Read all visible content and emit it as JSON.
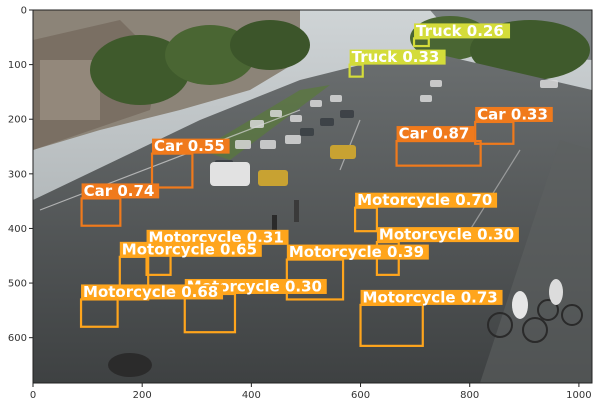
{
  "plot": {
    "x_ticks": [
      "0",
      "200",
      "400",
      "600",
      "800",
      "1000"
    ],
    "y_ticks": [
      "0",
      "100",
      "200",
      "300",
      "400",
      "500",
      "600"
    ],
    "xlim": [
      0,
      1024
    ],
    "ylim": [
      683,
      0
    ]
  },
  "colors": {
    "car": "#f07a1c",
    "truck": "#d4dc3a",
    "motorcycle": "#ffa51c"
  },
  "detections": [
    {
      "label": "Truck 0.26",
      "cls": "truck",
      "x1": 698,
      "y1": 52,
      "x2": 725,
      "y2": 66
    },
    {
      "label": "Truck 0.33",
      "cls": "truck",
      "x1": 580,
      "y1": 100,
      "x2": 604,
      "y2": 122
    },
    {
      "label": "Car 0.33",
      "cls": "car",
      "x1": 810,
      "y1": 205,
      "x2": 880,
      "y2": 245
    },
    {
      "label": "Car 0.87",
      "cls": "car",
      "x1": 666,
      "y1": 240,
      "x2": 820,
      "y2": 285
    },
    {
      "label": "Car 0.55",
      "cls": "car",
      "x1": 218,
      "y1": 263,
      "x2": 292,
      "y2": 325
    },
    {
      "label": "Car 0.74",
      "cls": "car",
      "x1": 89,
      "y1": 345,
      "x2": 160,
      "y2": 395
    },
    {
      "label": "Motorcycle 0.70",
      "cls": "motorcycle",
      "x1": 590,
      "y1": 362,
      "x2": 630,
      "y2": 405
    },
    {
      "label": "Motorcycle 0.31",
      "cls": "motorcycle",
      "x1": 208,
      "y1": 430,
      "x2": 252,
      "y2": 485
    },
    {
      "label": "Motorcycle 0.30",
      "cls": "motorcycle",
      "x1": 630,
      "y1": 425,
      "x2": 670,
      "y2": 485
    },
    {
      "label": "Motorcycle 0.65",
      "cls": "motorcycle",
      "x1": 159,
      "y1": 452,
      "x2": 211,
      "y2": 530
    },
    {
      "label": "Motorcycle 0.39",
      "cls": "motorcycle",
      "x1": 465,
      "y1": 457,
      "x2": 568,
      "y2": 530
    },
    {
      "label": "Motorcycle 0.30",
      "cls": "motorcycle",
      "x1": 278,
      "y1": 520,
      "x2": 370,
      "y2": 590
    },
    {
      "label": "Motorcycle 0.68",
      "cls": "motorcycle",
      "x1": 88,
      "y1": 530,
      "x2": 155,
      "y2": 580
    },
    {
      "label": "Motorcycle 0.73",
      "cls": "motorcycle",
      "x1": 600,
      "y1": 540,
      "x2": 714,
      "y2": 615
    }
  ]
}
